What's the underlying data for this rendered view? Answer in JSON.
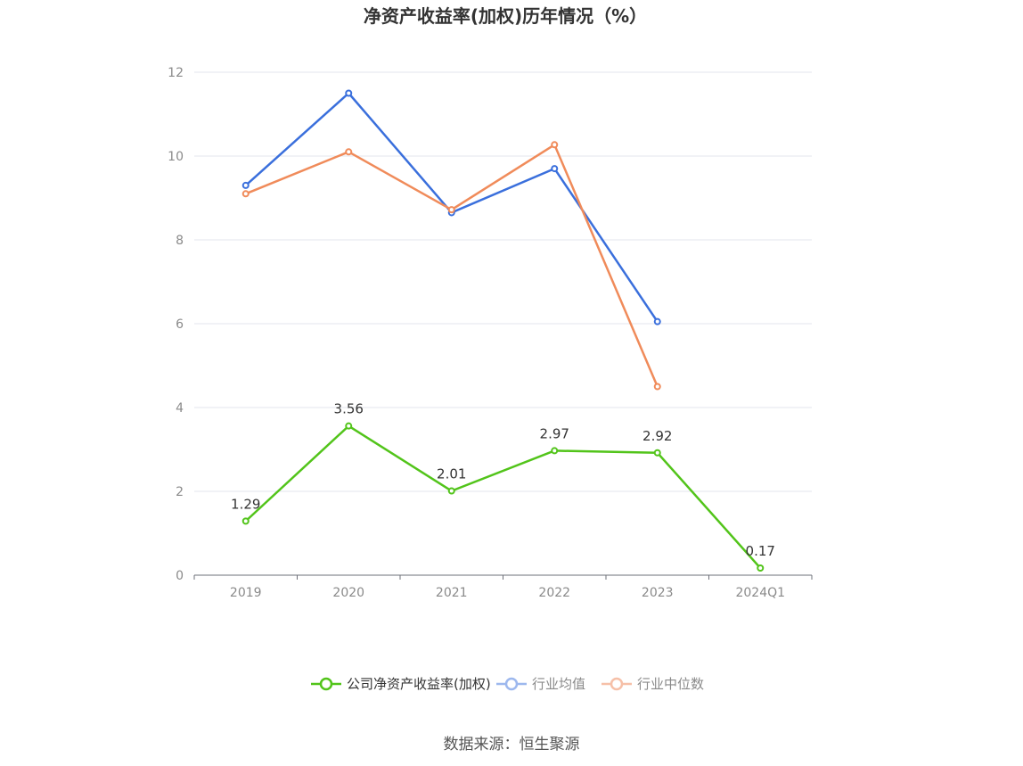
{
  "chart_data": {
    "type": "line",
    "title": "净资产收益率(加权)历年情况（%）",
    "categories": [
      "2019",
      "2020",
      "2021",
      "2022",
      "2023",
      "2024Q1"
    ],
    "ylim": [
      0,
      12
    ],
    "yticks": [
      "0",
      "2",
      "4",
      "6",
      "8",
      "10",
      "12"
    ],
    "grid": true,
    "legend_position": "bottom",
    "series": [
      {
        "name": "公司净资产收益率(加权)",
        "color": "#52c41a",
        "values": [
          1.29,
          3.56,
          2.01,
          2.97,
          2.92,
          0.17
        ],
        "labels": [
          "1.29",
          "3.56",
          "2.01",
          "2.97",
          "2.92",
          "0.17"
        ],
        "show_labels": true
      },
      {
        "name": "行业均值",
        "color": "#3a6fdc",
        "legend_color": "#9db8ee",
        "values": [
          9.3,
          11.5,
          8.65,
          9.7,
          6.05,
          null
        ],
        "show_labels": false
      },
      {
        "name": "行业中位数",
        "color": "#f08b5a",
        "legend_color": "#f6c0a8",
        "values": [
          9.1,
          10.1,
          8.72,
          10.27,
          4.5,
          null
        ],
        "show_labels": false
      }
    ]
  },
  "source": "数据来源：恒生聚源"
}
